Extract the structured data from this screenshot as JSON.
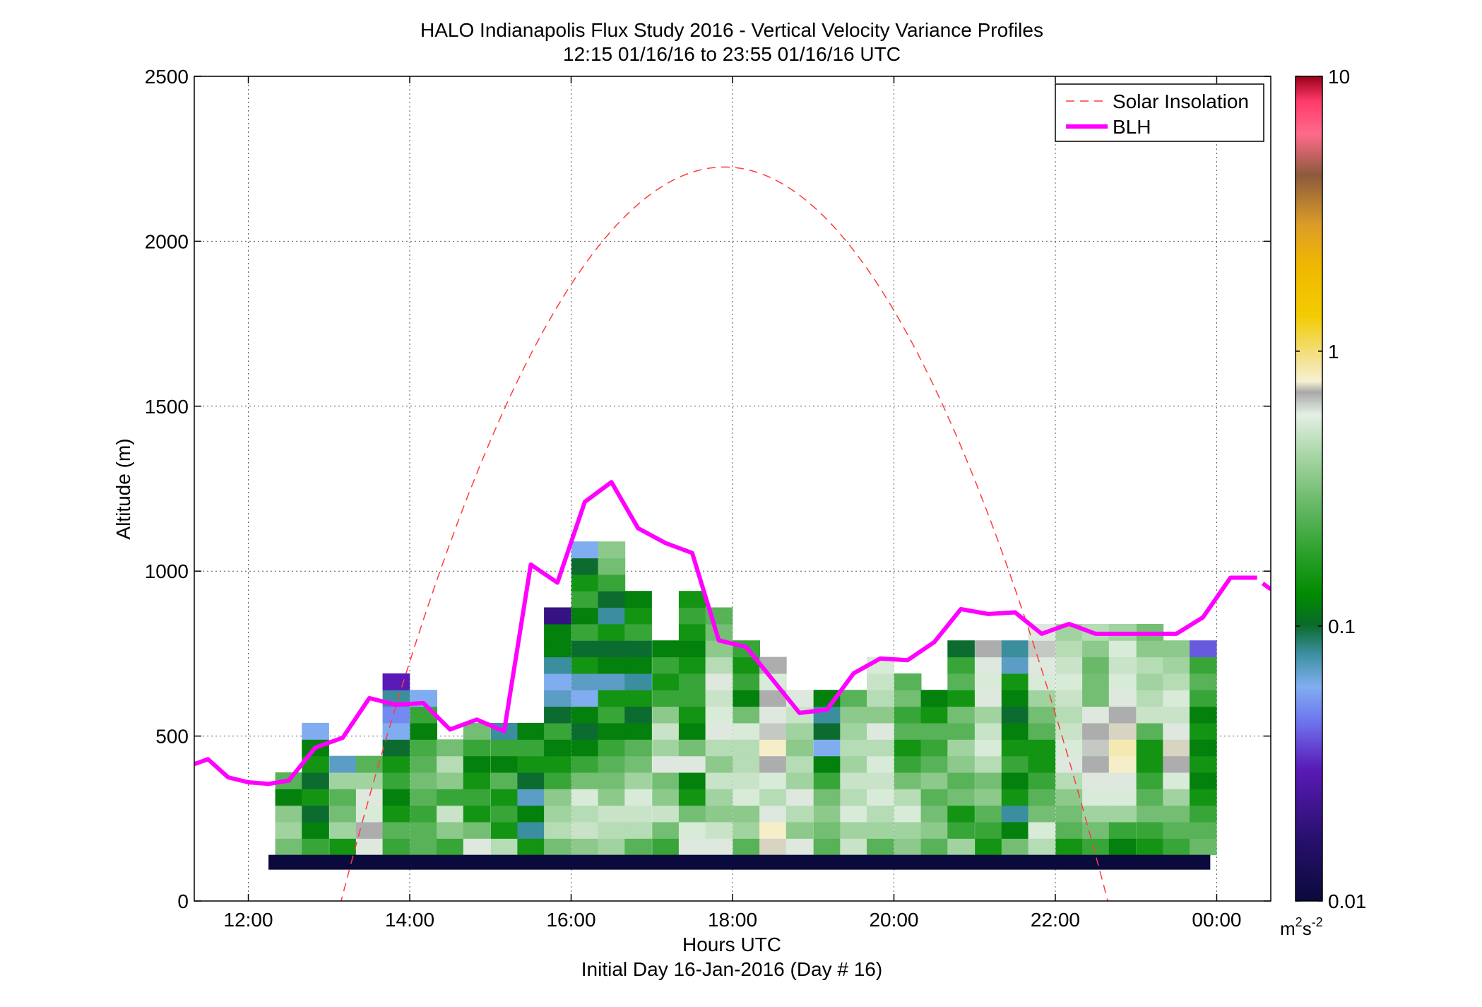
{
  "chart_data": {
    "type": "heatmap",
    "title": "HALO Indianapolis Flux Study 2016 - Vertical Velocity Variance Profiles",
    "subtitle": "12:15 01/16/16 to 23:55 01/16/16  UTC",
    "xlabel": "Hours UTC",
    "xlabel2": "Initial Day 16-Jan-2016 (Day # 16)",
    "ylabel": "Altitude (m)",
    "xlim": [
      11.33,
      24.67
    ],
    "ylim": [
      0,
      2500
    ],
    "x_ticks": [
      12,
      14,
      16,
      18,
      20,
      22,
      24
    ],
    "x_tick_labels": [
      "12:00",
      "14:00",
      "16:00",
      "18:00",
      "20:00",
      "22:00",
      "00:00"
    ],
    "y_ticks": [
      0,
      500,
      1000,
      1500,
      2000,
      2500
    ],
    "y_tick_labels": [
      "0",
      "500",
      "1000",
      "1500",
      "2000",
      "2500"
    ],
    "grid": true,
    "legend": {
      "placement": "top-right",
      "entries": [
        "Solar Insolation",
        "BLH"
      ]
    },
    "colorbar": {
      "scale": "log",
      "range": [
        0.01,
        10
      ],
      "ticks": [
        0.01,
        0.1,
        1,
        10
      ],
      "tick_labels": [
        "0.01",
        "0.1",
        "1",
        "10"
      ],
      "unit_base": "m",
      "unit_sup1": "2",
      "unit_mid": "s",
      "unit_sup2": "-2"
    },
    "cell_time_step_h": 0.333,
    "cell_alt_step_m": 50,
    "cell_alt_start_m": 140,
    "profiles": [
      {
        "t": 12.5,
        "v": [
          0.3,
          0.4,
          0.35,
          0.12,
          0.25
        ]
      },
      {
        "t": 12.83,
        "v": [
          0.2,
          0.12,
          0.1,
          0.15,
          0.1,
          0.15,
          0.12,
          0.06
        ]
      },
      {
        "t": 13.17,
        "v": [
          0.15,
          0.4,
          0.3,
          0.25,
          0.4,
          0.07
        ]
      },
      {
        "t": 13.5,
        "v": [
          0.6,
          0.7,
          0.55,
          0.6,
          0.4,
          0.25
        ]
      },
      {
        "t": 13.83,
        "v": [
          0.2,
          0.25,
          0.15,
          0.12,
          0.2,
          0.15,
          0.1,
          0.06,
          0.05,
          0.08,
          0.03
        ]
      },
      {
        "t": 14.17,
        "v": [
          0.25,
          0.25,
          0.2,
          0.25,
          0.3,
          0.25,
          0.22,
          0.12,
          0.2,
          0.06
        ]
      },
      {
        "t": 14.5,
        "v": [
          0.2,
          0.35,
          0.5,
          0.2,
          0.35,
          0.45,
          0.3
        ]
      },
      {
        "t": 14.83,
        "v": [
          0.6,
          0.3,
          0.15,
          0.2,
          0.15,
          0.12,
          0.2,
          0.3
        ]
      },
      {
        "t": 15.17,
        "v": [
          0.45,
          0.15,
          0.2,
          0.15,
          0.25,
          0.12,
          0.2,
          0.08
        ]
      },
      {
        "t": 15.5,
        "v": [
          0.15,
          0.08,
          0.12,
          0.07,
          0.1,
          0.15,
          0.2,
          0.12
        ]
      },
      {
        "t": 15.83,
        "v": [
          0.3,
          0.45,
          0.4,
          0.35,
          0.2,
          0.15,
          0.12,
          0.2,
          0.1,
          0.07,
          0.06,
          0.08,
          0.12,
          0.12,
          0.02
        ]
      },
      {
        "t": 16.17,
        "v": [
          0.35,
          0.5,
          0.45,
          0.55,
          0.3,
          0.2,
          0.12,
          0.1,
          0.12,
          0.06,
          0.07,
          0.15,
          0.1,
          0.2,
          0.12,
          0.2,
          0.15,
          0.1,
          0.06
        ]
      },
      {
        "t": 16.5,
        "v": [
          0.4,
          0.45,
          0.5,
          0.35,
          0.3,
          0.25,
          0.2,
          0.12,
          0.2,
          0.15,
          0.07,
          0.12,
          0.1,
          0.15,
          0.08,
          0.1,
          0.2,
          0.3,
          0.35
        ]
      },
      {
        "t": 16.83,
        "v": [
          0.25,
          0.45,
          0.5,
          0.55,
          0.4,
          0.3,
          0.25,
          0.12,
          0.1,
          0.15,
          0.08,
          0.12,
          0.1,
          0.2,
          0.15,
          0.12
        ]
      },
      {
        "t": 17.17,
        "v": [
          0.2,
          0.3,
          0.5,
          0.35,
          0.3,
          0.6,
          0.4,
          0.5,
          0.35,
          0.2,
          0.15,
          0.2,
          0.12
        ]
      },
      {
        "t": 17.5,
        "v": [
          0.6,
          0.55,
          0.3,
          0.15,
          0.12,
          0.6,
          0.3,
          0.12,
          0.15,
          0.2,
          0.2,
          0.15,
          0.12,
          0.15,
          0.2,
          0.15
        ]
      },
      {
        "t": 17.83,
        "v": [
          0.6,
          0.5,
          0.35,
          0.4,
          0.5,
          0.35,
          0.45,
          0.6,
          0.55,
          0.5,
          0.6,
          0.45,
          0.35,
          0.3,
          0.25
        ]
      },
      {
        "t": 18.17,
        "v": [
          0.25,
          0.4,
          0.35,
          0.55,
          0.5,
          0.45,
          0.45,
          0.55,
          0.3,
          0.12,
          0.2,
          0.15,
          0.2
        ]
      },
      {
        "t": 18.5,
        "v": [
          0.75,
          0.8,
          0.6,
          0.45,
          0.55,
          0.7,
          0.8,
          0.65,
          0.6,
          0.7,
          0.55,
          0.7
        ]
      },
      {
        "t": 18.83,
        "v": [
          0.6,
          0.35,
          0.45,
          0.6,
          0.4,
          0.45,
          0.35,
          0.4,
          0.5,
          0.6
        ]
      },
      {
        "t": 19.17,
        "v": [
          0.25,
          0.3,
          0.35,
          0.3,
          0.2,
          0.12,
          0.06,
          0.1,
          0.08,
          0.12
        ]
      },
      {
        "t": 19.5,
        "v": [
          0.5,
          0.4,
          0.55,
          0.45,
          0.5,
          0.4,
          0.45,
          0.4,
          0.35,
          0.25
        ]
      },
      {
        "t": 19.83,
        "v": [
          0.25,
          0.4,
          0.45,
          0.55,
          0.5,
          0.55,
          0.45,
          0.6,
          0.35,
          0.45,
          0.5,
          0.55
        ]
      },
      {
        "t": 20.17,
        "v": [
          0.35,
          0.4,
          0.55,
          0.45,
          0.3,
          0.2,
          0.15,
          0.25,
          0.2,
          0.3,
          0.25
        ]
      },
      {
        "t": 20.5,
        "v": [
          0.25,
          0.35,
          0.3,
          0.25,
          0.35,
          0.25,
          0.2,
          0.25,
          0.15,
          0.12
        ]
      },
      {
        "t": 20.83,
        "v": [
          0.4,
          0.2,
          0.15,
          0.3,
          0.25,
          0.35,
          0.4,
          0.25,
          0.3,
          0.15,
          0.25,
          0.2,
          0.1
        ]
      },
      {
        "t": 21.17,
        "v": [
          0.15,
          0.2,
          0.25,
          0.35,
          0.3,
          0.45,
          0.55,
          0.5,
          0.4,
          0.6,
          0.55,
          0.6,
          0.7
        ]
      },
      {
        "t": 21.5,
        "v": [
          0.3,
          0.12,
          0.08,
          0.15,
          0.12,
          0.2,
          0.15,
          0.12,
          0.1,
          0.12,
          0.15,
          0.07,
          0.08
        ]
      },
      {
        "t": 21.83,
        "v": [
          0.45,
          0.55,
          0.3,
          0.25,
          0.2,
          0.15,
          0.15,
          0.25,
          0.3,
          0.4,
          0.55,
          0.6,
          0.65,
          0.6
        ]
      },
      {
        "t": 22.17,
        "v": [
          0.15,
          0.25,
          0.3,
          0.35,
          0.45,
          0.6,
          0.55,
          0.5,
          0.45,
          0.5,
          0.55,
          0.5,
          0.45,
          0.4
        ]
      },
      {
        "t": 22.5,
        "v": [
          0.2,
          0.3,
          0.4,
          0.55,
          0.6,
          0.7,
          0.65,
          0.7,
          0.6,
          0.3,
          0.3,
          0.28,
          0.35,
          0.45
        ]
      },
      {
        "t": 22.83,
        "v": [
          0.12,
          0.2,
          0.4,
          0.55,
          0.6,
          0.8,
          0.85,
          0.75,
          0.7,
          0.6,
          0.55,
          0.5,
          0.55,
          0.4
        ]
      },
      {
        "t": 23.17,
        "v": [
          0.15,
          0.2,
          0.3,
          0.25,
          0.2,
          0.15,
          0.15,
          0.25,
          0.5,
          0.45,
          0.4,
          0.45,
          0.35,
          0.3
        ]
      },
      {
        "t": 23.5,
        "v": [
          0.2,
          0.25,
          0.3,
          0.4,
          0.55,
          0.7,
          0.75,
          0.6,
          0.5,
          0.55,
          0.45,
          0.4,
          0.35
        ]
      },
      {
        "t": 23.83,
        "v": [
          0.28,
          0.25,
          0.2,
          0.15,
          0.12,
          0.15,
          0.12,
          0.15,
          0.12,
          0.2,
          0.25,
          0.2,
          0.04
        ]
      }
    ],
    "boundary_bar": {
      "t_start": 12.25,
      "t_end": 23.92,
      "alt_low": 95,
      "alt_high": 140,
      "value": 0.01
    },
    "solar_insolation_curve": {
      "peak_time": 17.9,
      "peak_alt": 2225,
      "zero_times": [
        13.1,
        22.6
      ]
    },
    "series": [
      {
        "name": "BLH",
        "x": [
          11.33,
          11.5,
          11.75,
          12.0,
          12.25,
          12.5,
          12.83,
          13.17,
          13.5,
          13.83,
          14.17,
          14.5,
          14.83,
          15.17,
          15.5,
          15.83,
          16.17,
          16.5,
          16.83,
          17.17,
          17.5,
          17.83,
          18.17,
          18.5,
          18.83,
          19.17,
          19.5,
          19.83,
          20.17,
          20.5,
          20.83,
          21.17,
          21.5,
          21.83,
          22.17,
          22.5,
          22.83,
          23.17,
          23.5,
          23.83,
          24.17,
          24.5,
          24.67
        ],
        "y": [
          415,
          430,
          375,
          360,
          355,
          365,
          465,
          495,
          615,
          595,
          600,
          520,
          550,
          515,
          1020,
          965,
          1210,
          1270,
          1130,
          1085,
          1055,
          790,
          770,
          670,
          570,
          580,
          690,
          735,
          730,
          785,
          885,
          870,
          875,
          810,
          840,
          810,
          810,
          810,
          810,
          860,
          980,
          980,
          945
        ]
      }
    ]
  }
}
